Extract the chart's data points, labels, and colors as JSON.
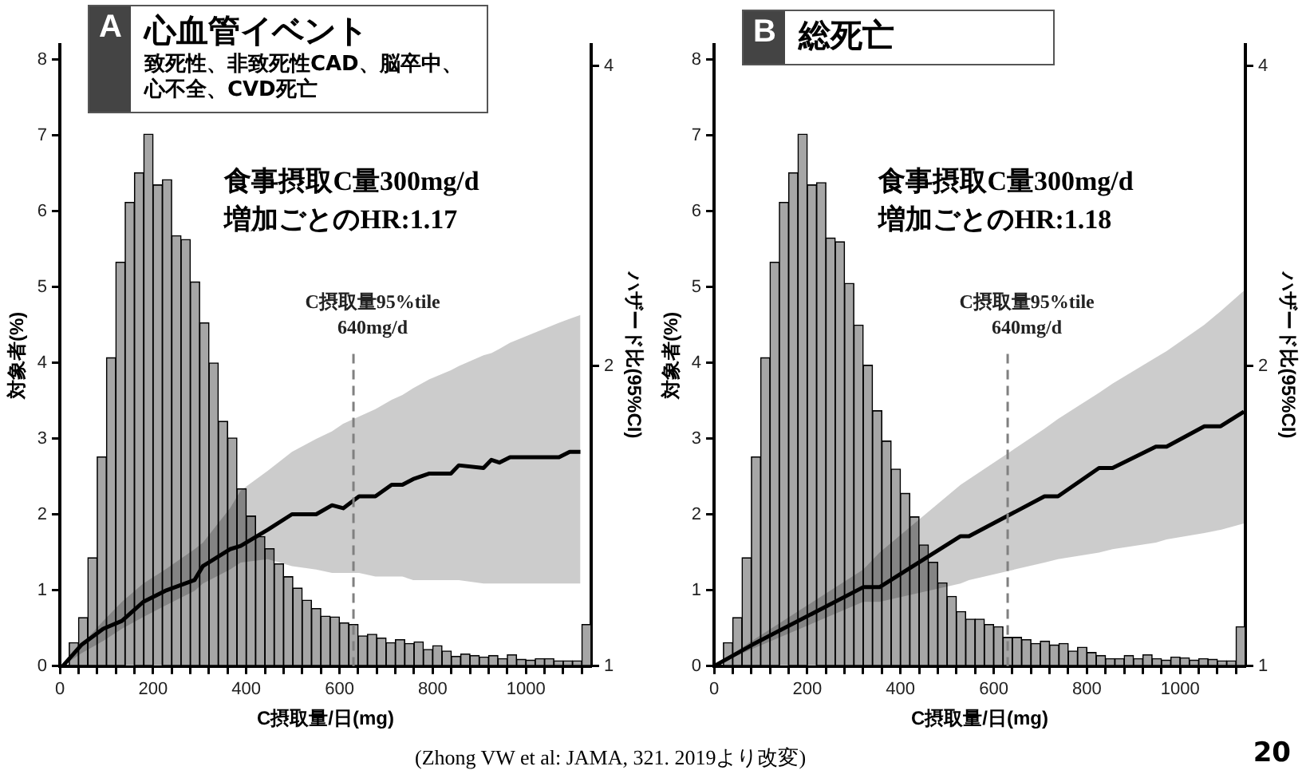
{
  "chart_data": [
    {
      "type": "histogram",
      "title": "心血管イベント",
      "subtitle": "致死性、非致死性CAD、脳卒中、心不全、CVD死亡",
      "xlabel": "C摂取量/日(mg)",
      "ylabel": "対象者(%)",
      "y2label": "ハザード比(95%CI)",
      "annotations": [
        "A",
        "食事摂取C量300mg/d\n増加ごとのHR:1.17"
      ],
      "bins": [
        20,
        40,
        60,
        80,
        100,
        120,
        140,
        160,
        180,
        200,
        220,
        240,
        260,
        280,
        300,
        320,
        340,
        360,
        380,
        400,
        420,
        440,
        460,
        480,
        500,
        520,
        540,
        560,
        580,
        600,
        620,
        640,
        660,
        680,
        700,
        720,
        740,
        760,
        780,
        800,
        820,
        840,
        860,
        880,
        900,
        920,
        940,
        960,
        980,
        1000,
        1020,
        1040,
        1060,
        1080,
        1100,
        1120,
        1140
      ],
      "values": [
        0.31,
        0.64,
        1.43,
        2.76,
        4.07,
        5.33,
        6.12,
        6.51,
        7.02,
        6.35,
        6.42,
        5.68,
        5.63,
        5.07,
        4.53,
        4.0,
        3.23,
        3.01,
        2.34,
        1.98,
        1.71,
        1.55,
        1.35,
        1.18,
        1.03,
        0.87,
        0.76,
        0.66,
        0.65,
        0.57,
        0.55,
        0.4,
        0.42,
        0.37,
        0.31,
        0.35,
        0.3,
        0.32,
        0.22,
        0.27,
        0.2,
        0.13,
        0.16,
        0.14,
        0.12,
        0.14,
        0.1,
        0.15,
        0.09,
        0.08,
        0.1,
        0.1,
        0.07,
        0.07,
        0.07,
        0.55
      ],
      "color": "#a6a6a6",
      "series": [
        {
          "type": "line",
          "axis": "y2",
          "color": "#000000",
          "x": [
            6,
            46,
            93,
            133,
            179,
            226,
            289,
            307,
            365,
            388,
            446,
            498,
            550,
            584,
            608,
            642,
            677,
            712,
            735,
            758,
            793,
            839,
            856,
            909,
            926,
            943,
            966,
            1071,
            1094,
            1117
          ],
          "values": [
            1.0,
            1.05,
            1.09,
            1.11,
            1.16,
            1.19,
            1.22,
            1.26,
            1.31,
            1.32,
            1.37,
            1.42,
            1.42,
            1.45,
            1.44,
            1.48,
            1.48,
            1.52,
            1.52,
            1.54,
            1.56,
            1.56,
            1.59,
            1.58,
            1.61,
            1.6,
            1.62,
            1.62,
            1.64,
            1.64
          ],
          "lower": [
            1.0,
            1.03,
            1.06,
            1.09,
            1.12,
            1.15,
            1.19,
            1.21,
            1.25,
            1.27,
            1.28,
            1.26,
            1.25,
            1.24,
            1.24,
            1.24,
            1.23,
            1.23,
            1.23,
            1.22,
            1.22,
            1.22,
            1.22,
            1.21,
            1.21,
            1.21,
            1.21,
            1.21,
            1.21,
            1.21
          ],
          "upper": [
            1.0,
            1.05,
            1.11,
            1.16,
            1.21,
            1.25,
            1.31,
            1.33,
            1.44,
            1.5,
            1.57,
            1.64,
            1.69,
            1.72,
            1.75,
            1.78,
            1.81,
            1.85,
            1.87,
            1.9,
            1.94,
            1.98,
            2.0,
            2.05,
            2.06,
            2.08,
            2.11,
            2.21,
            2.23,
            2.25
          ]
        }
      ],
      "xlim": [
        0,
        1140
      ],
      "xticks": [
        0,
        {
          "value": 40,
          "label": null
        },
        {
          "value": 80,
          "label": null
        },
        {
          "value": 120,
          "label": null
        },
        {
          "value": 160,
          "label": null
        },
        200,
        {
          "value": 240,
          "label": null
        },
        {
          "value": 280,
          "label": null
        },
        {
          "value": 320,
          "label": null
        },
        {
          "value": 360,
          "label": null
        },
        400,
        {
          "value": 440,
          "label": null
        },
        {
          "value": 480,
          "label": null
        },
        {
          "value": 520,
          "label": null
        },
        {
          "value": 560,
          "label": null
        },
        600,
        {
          "value": 640,
          "label": null
        },
        {
          "value": 680,
          "label": null
        },
        {
          "value": 720,
          "label": null
        },
        {
          "value": 760,
          "label": null
        },
        800,
        {
          "value": 840,
          "label": null
        },
        {
          "value": 880,
          "label": null
        },
        {
          "value": 920,
          "label": null
        },
        {
          "value": 960,
          "label": null
        },
        1000,
        {
          "value": 1040,
          "label": null
        },
        {
          "value": 1080,
          "label": null
        },
        {
          "value": 1120,
          "label": null
        }
      ],
      "ylim": [
        0,
        8.2
      ],
      "yticks": [
        0,
        1,
        2,
        3,
        4,
        5,
        6,
        7,
        8
      ],
      "y2lim": [
        1,
        4.2
      ],
      "y2ticks": [
        1,
        2,
        4
      ],
      "log": "y2",
      "ref_lines": [
        {
          "axis": "x",
          "value": 630,
          "label": "C摂取量95%tile\n640mg/d",
          "color": "#808080",
          "line_style": "dashed"
        }
      ],
      "grid": false,
      "marker": "none"
    },
    {
      "type": "histogram",
      "title": "総死亡",
      "xlabel": "C摂取量/日(mg)",
      "ylabel": "対象者(%)",
      "y2label": "ハザード比(95%CI)",
      "annotations": [
        "B",
        "食事摂取C量300mg/d\n増加ごとのHR:1.18",
        "(Zhong VW et al: JAMA, 321. 2019より改変)",
        "20"
      ],
      "bins": [
        20,
        40,
        60,
        80,
        100,
        120,
        140,
        160,
        180,
        200,
        220,
        240,
        260,
        280,
        300,
        320,
        340,
        360,
        380,
        400,
        420,
        440,
        460,
        480,
        500,
        520,
        540,
        560,
        580,
        600,
        620,
        640,
        660,
        680,
        700,
        720,
        740,
        760,
        780,
        800,
        820,
        840,
        860,
        880,
        900,
        920,
        940,
        960,
        980,
        1000,
        1020,
        1040,
        1060,
        1080,
        1100,
        1120,
        1140
      ],
      "values": [
        0.31,
        0.64,
        1.43,
        2.76,
        4.07,
        5.33,
        6.12,
        6.51,
        7.02,
        6.35,
        6.38,
        5.65,
        5.6,
        5.05,
        4.5,
        3.97,
        3.37,
        2.97,
        2.6,
        2.28,
        1.97,
        1.6,
        1.37,
        1.1,
        0.92,
        0.72,
        0.62,
        0.62,
        0.55,
        0.52,
        0.38,
        0.38,
        0.35,
        0.3,
        0.33,
        0.28,
        0.3,
        0.2,
        0.25,
        0.18,
        0.14,
        0.1,
        0.1,
        0.14,
        0.1,
        0.15,
        0.1,
        0.08,
        0.12,
        0.11,
        0.08,
        0.1,
        0.09,
        0.07,
        0.07,
        0.52
      ],
      "color": "#a6a6a6",
      "series": [
        {
          "type": "line",
          "axis": "y2",
          "color": "#000000",
          "x": [
            0,
            81,
            320,
            355,
            529,
            547,
            709,
            738,
            826,
            855,
            948,
            971,
            1052,
            1087,
            1137
          ],
          "values": [
            1.0,
            1.05,
            1.2,
            1.2,
            1.35,
            1.35,
            1.48,
            1.48,
            1.58,
            1.58,
            1.66,
            1.66,
            1.74,
            1.74,
            1.8
          ],
          "lower": [
            1.0,
            1.04,
            1.16,
            1.16,
            1.21,
            1.22,
            1.27,
            1.28,
            1.3,
            1.31,
            1.33,
            1.34,
            1.36,
            1.37,
            1.39
          ],
          "upper": [
            1.0,
            1.06,
            1.25,
            1.3,
            1.52,
            1.54,
            1.73,
            1.77,
            1.88,
            1.92,
            2.04,
            2.07,
            2.2,
            2.27,
            2.38
          ]
        }
      ],
      "xlim": [
        0,
        1140
      ],
      "xticks": [
        0,
        {
          "value": 40,
          "label": null
        },
        {
          "value": 80,
          "label": null
        },
        {
          "value": 120,
          "label": null
        },
        {
          "value": 160,
          "label": null
        },
        200,
        {
          "value": 240,
          "label": null
        },
        {
          "value": 280,
          "label": null
        },
        {
          "value": 320,
          "label": null
        },
        {
          "value": 360,
          "label": null
        },
        400,
        {
          "value": 440,
          "label": null
        },
        {
          "value": 480,
          "label": null
        },
        {
          "value": 520,
          "label": null
        },
        {
          "value": 560,
          "label": null
        },
        600,
        {
          "value": 640,
          "label": null
        },
        {
          "value": 680,
          "label": null
        },
        {
          "value": 720,
          "label": null
        },
        {
          "value": 760,
          "label": null
        },
        800,
        {
          "value": 840,
          "label": null
        },
        {
          "value": 880,
          "label": null
        },
        {
          "value": 920,
          "label": null
        },
        {
          "value": 960,
          "label": null
        },
        1000,
        {
          "value": 1040,
          "label": null
        },
        {
          "value": 1080,
          "label": null
        },
        {
          "value": 1120,
          "label": null
        }
      ],
      "ylim": [
        0,
        8.2
      ],
      "yticks": [
        0,
        1,
        2,
        3,
        4,
        5,
        6,
        7,
        8
      ],
      "y2lim": [
        1,
        4.2
      ],
      "y2ticks": [
        1,
        2,
        4
      ],
      "log": "y2",
      "ref_lines": [
        {
          "axis": "x",
          "value": 630,
          "label": "C摂取量95%tile\n640mg/d",
          "color": "#808080",
          "line_style": "dashed"
        }
      ],
      "grid": false,
      "marker": "none"
    }
  ]
}
